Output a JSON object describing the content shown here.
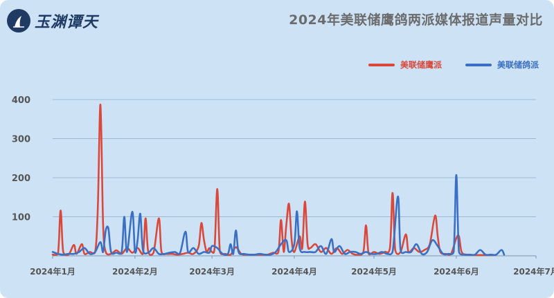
{
  "header": {
    "logo_text": "玉渊谭天",
    "title": "2024年美联储鹰鸽两派媒体报道声量对比"
  },
  "colors": {
    "background": "#cde3f5",
    "hawk": "#d9483b",
    "dove": "#3a6fc4",
    "grid": "#9ab8d4",
    "axis_text": "#555555"
  },
  "chart_data": {
    "type": "line",
    "title": "2024年美联储鹰鸽两派媒体报道声量对比",
    "xlabel": "",
    "ylabel": "",
    "ylim": [
      0,
      400
    ],
    "yticks": [
      100,
      200,
      300,
      400
    ],
    "xticks": [
      "2024年1月",
      "2024年2月",
      "2024年3月",
      "2024年4月",
      "2024年5月",
      "2024年6月",
      "2024年7月"
    ],
    "xlim": [
      "2024-01-01",
      "2024-07-01"
    ],
    "grid": true,
    "legend_position": "top-right",
    "series": [
      {
        "name": "美联储鹰派",
        "color": "#d9483b",
        "points": [
          [
            "2024-01-01",
            3
          ],
          [
            "2024-01-03",
            5
          ],
          [
            "2024-01-04",
            116
          ],
          [
            "2024-01-05",
            10
          ],
          [
            "2024-01-07",
            3
          ],
          [
            "2024-01-09",
            28
          ],
          [
            "2024-01-10",
            5
          ],
          [
            "2024-01-12",
            30
          ],
          [
            "2024-01-13",
            5
          ],
          [
            "2024-01-15",
            10
          ],
          [
            "2024-01-17",
            10
          ],
          [
            "2024-01-18",
            120
          ],
          [
            "2024-01-19",
            387
          ],
          [
            "2024-01-20",
            80
          ],
          [
            "2024-01-21",
            10
          ],
          [
            "2024-01-23",
            5
          ],
          [
            "2024-01-25",
            14
          ],
          [
            "2024-01-27",
            5
          ],
          [
            "2024-01-29",
            20
          ],
          [
            "2024-01-31",
            8
          ],
          [
            "2024-02-02",
            20
          ],
          [
            "2024-02-04",
            5
          ],
          [
            "2024-02-05",
            96
          ],
          [
            "2024-02-06",
            10
          ],
          [
            "2024-02-08",
            8
          ],
          [
            "2024-02-10",
            96
          ],
          [
            "2024-02-11",
            10
          ],
          [
            "2024-02-13",
            5
          ],
          [
            "2024-02-15",
            5
          ],
          [
            "2024-02-17",
            3
          ],
          [
            "2024-02-19",
            5
          ],
          [
            "2024-02-21",
            8
          ],
          [
            "2024-02-23",
            5
          ],
          [
            "2024-02-25",
            25
          ],
          [
            "2024-02-26",
            84
          ],
          [
            "2024-02-27",
            40
          ],
          [
            "2024-02-28",
            10
          ],
          [
            "2024-02-29",
            20
          ],
          [
            "2024-03-01",
            10
          ],
          [
            "2024-03-02",
            20
          ],
          [
            "2024-03-03",
            171
          ],
          [
            "2024-03-04",
            10
          ],
          [
            "2024-03-06",
            5
          ],
          [
            "2024-03-08",
            3
          ],
          [
            "2024-03-10",
            22
          ],
          [
            "2024-03-12",
            5
          ],
          [
            "2024-03-14",
            3
          ],
          [
            "2024-03-16",
            3
          ],
          [
            "2024-03-18",
            3
          ],
          [
            "2024-03-20",
            3
          ],
          [
            "2024-03-22",
            3
          ],
          [
            "2024-03-24",
            8
          ],
          [
            "2024-03-26",
            10
          ],
          [
            "2024-03-27",
            92
          ],
          [
            "2024-03-28",
            10
          ],
          [
            "2024-03-29",
            80
          ],
          [
            "2024-03-30",
            133
          ],
          [
            "2024-03-31",
            40
          ],
          [
            "2024-04-01",
            10
          ],
          [
            "2024-04-03",
            50
          ],
          [
            "2024-04-04",
            20
          ],
          [
            "2024-04-05",
            139
          ],
          [
            "2024-04-06",
            30
          ],
          [
            "2024-04-07",
            20
          ],
          [
            "2024-04-09",
            30
          ],
          [
            "2024-04-11",
            10
          ],
          [
            "2024-04-13",
            20
          ],
          [
            "2024-04-15",
            5
          ],
          [
            "2024-04-17",
            20
          ],
          [
            "2024-04-19",
            5
          ],
          [
            "2024-04-21",
            15
          ],
          [
            "2024-04-23",
            5
          ],
          [
            "2024-04-25",
            3
          ],
          [
            "2024-04-27",
            10
          ],
          [
            "2024-04-28",
            78
          ],
          [
            "2024-04-29",
            5
          ],
          [
            "2024-05-01",
            10
          ],
          [
            "2024-05-03",
            5
          ],
          [
            "2024-05-05",
            10
          ],
          [
            "2024-05-07",
            20
          ],
          [
            "2024-05-08",
            161
          ],
          [
            "2024-05-09",
            15
          ],
          [
            "2024-05-11",
            10
          ],
          [
            "2024-05-13",
            55
          ],
          [
            "2024-05-14",
            10
          ],
          [
            "2024-05-16",
            20
          ],
          [
            "2024-05-18",
            10
          ],
          [
            "2024-05-20",
            15
          ],
          [
            "2024-05-22",
            30
          ],
          [
            "2024-05-24",
            103
          ],
          [
            "2024-05-25",
            50
          ],
          [
            "2024-05-26",
            10
          ],
          [
            "2024-05-28",
            5
          ],
          [
            "2024-05-30",
            5
          ],
          [
            "2024-06-01",
            45
          ],
          [
            "2024-06-02",
            50
          ],
          [
            "2024-06-03",
            10
          ],
          [
            "2024-06-05",
            3
          ],
          [
            "2024-06-08",
            2
          ],
          [
            "2024-06-12",
            2
          ],
          [
            "2024-06-15",
            2
          ]
        ]
      },
      {
        "name": "美联储鸽派",
        "color": "#3a6fc4",
        "points": [
          [
            "2024-01-01",
            10
          ],
          [
            "2024-01-03",
            5
          ],
          [
            "2024-01-05",
            3
          ],
          [
            "2024-01-07",
            5
          ],
          [
            "2024-01-09",
            5
          ],
          [
            "2024-01-11",
            10
          ],
          [
            "2024-01-13",
            20
          ],
          [
            "2024-01-15",
            5
          ],
          [
            "2024-01-17",
            10
          ],
          [
            "2024-01-19",
            35
          ],
          [
            "2024-01-20",
            10
          ],
          [
            "2024-01-21",
            65
          ],
          [
            "2024-01-22",
            70
          ],
          [
            "2024-01-23",
            10
          ],
          [
            "2024-01-25",
            8
          ],
          [
            "2024-01-27",
            10
          ],
          [
            "2024-01-28",
            100
          ],
          [
            "2024-01-29",
            10
          ],
          [
            "2024-01-31",
            113
          ],
          [
            "2024-02-01",
            10
          ],
          [
            "2024-02-02",
            40
          ],
          [
            "2024-02-03",
            108
          ],
          [
            "2024-02-04",
            15
          ],
          [
            "2024-02-06",
            8
          ],
          [
            "2024-02-08",
            20
          ],
          [
            "2024-02-10",
            5
          ],
          [
            "2024-02-12",
            5
          ],
          [
            "2024-02-14",
            8
          ],
          [
            "2024-02-16",
            10
          ],
          [
            "2024-02-18",
            8
          ],
          [
            "2024-02-20",
            62
          ],
          [
            "2024-02-21",
            10
          ],
          [
            "2024-02-23",
            20
          ],
          [
            "2024-02-25",
            5
          ],
          [
            "2024-02-27",
            10
          ],
          [
            "2024-02-29",
            8
          ],
          [
            "2024-03-01",
            25
          ],
          [
            "2024-03-03",
            20
          ],
          [
            "2024-03-05",
            5
          ],
          [
            "2024-03-07",
            5
          ],
          [
            "2024-03-08",
            30
          ],
          [
            "2024-03-09",
            5
          ],
          [
            "2024-03-10",
            65
          ],
          [
            "2024-03-11",
            10
          ],
          [
            "2024-03-13",
            5
          ],
          [
            "2024-03-15",
            3
          ],
          [
            "2024-03-17",
            3
          ],
          [
            "2024-03-19",
            5
          ],
          [
            "2024-03-21",
            3
          ],
          [
            "2024-03-23",
            3
          ],
          [
            "2024-03-25",
            10
          ],
          [
            "2024-03-27",
            30
          ],
          [
            "2024-03-29",
            40
          ],
          [
            "2024-03-30",
            10
          ],
          [
            "2024-04-01",
            30
          ],
          [
            "2024-04-02",
            114
          ],
          [
            "2024-04-03",
            20
          ],
          [
            "2024-04-05",
            10
          ],
          [
            "2024-04-07",
            10
          ],
          [
            "2024-04-09",
            10
          ],
          [
            "2024-04-11",
            25
          ],
          [
            "2024-04-13",
            5
          ],
          [
            "2024-04-15",
            43
          ],
          [
            "2024-04-16",
            10
          ],
          [
            "2024-04-18",
            25
          ],
          [
            "2024-04-20",
            5
          ],
          [
            "2024-04-22",
            10
          ],
          [
            "2024-04-24",
            10
          ],
          [
            "2024-04-26",
            5
          ],
          [
            "2024-04-28",
            10
          ],
          [
            "2024-04-30",
            5
          ],
          [
            "2024-05-02",
            5
          ],
          [
            "2024-05-04",
            10
          ],
          [
            "2024-05-06",
            5
          ],
          [
            "2024-05-08",
            10
          ],
          [
            "2024-05-10",
            152
          ],
          [
            "2024-05-11",
            15
          ],
          [
            "2024-05-13",
            10
          ],
          [
            "2024-05-15",
            10
          ],
          [
            "2024-05-17",
            30
          ],
          [
            "2024-05-19",
            5
          ],
          [
            "2024-05-21",
            10
          ],
          [
            "2024-05-23",
            40
          ],
          [
            "2024-05-25",
            25
          ],
          [
            "2024-05-27",
            5
          ],
          [
            "2024-05-29",
            5
          ],
          [
            "2024-05-31",
            10
          ],
          [
            "2024-06-01",
            207
          ],
          [
            "2024-06-02",
            10
          ],
          [
            "2024-06-04",
            3
          ],
          [
            "2024-06-06",
            3
          ],
          [
            "2024-06-08",
            3
          ],
          [
            "2024-06-10",
            15
          ],
          [
            "2024-06-12",
            3
          ],
          [
            "2024-06-14",
            3
          ],
          [
            "2024-06-16",
            3
          ],
          [
            "2024-06-18",
            15
          ],
          [
            "2024-06-19",
            3
          ]
        ]
      }
    ]
  }
}
